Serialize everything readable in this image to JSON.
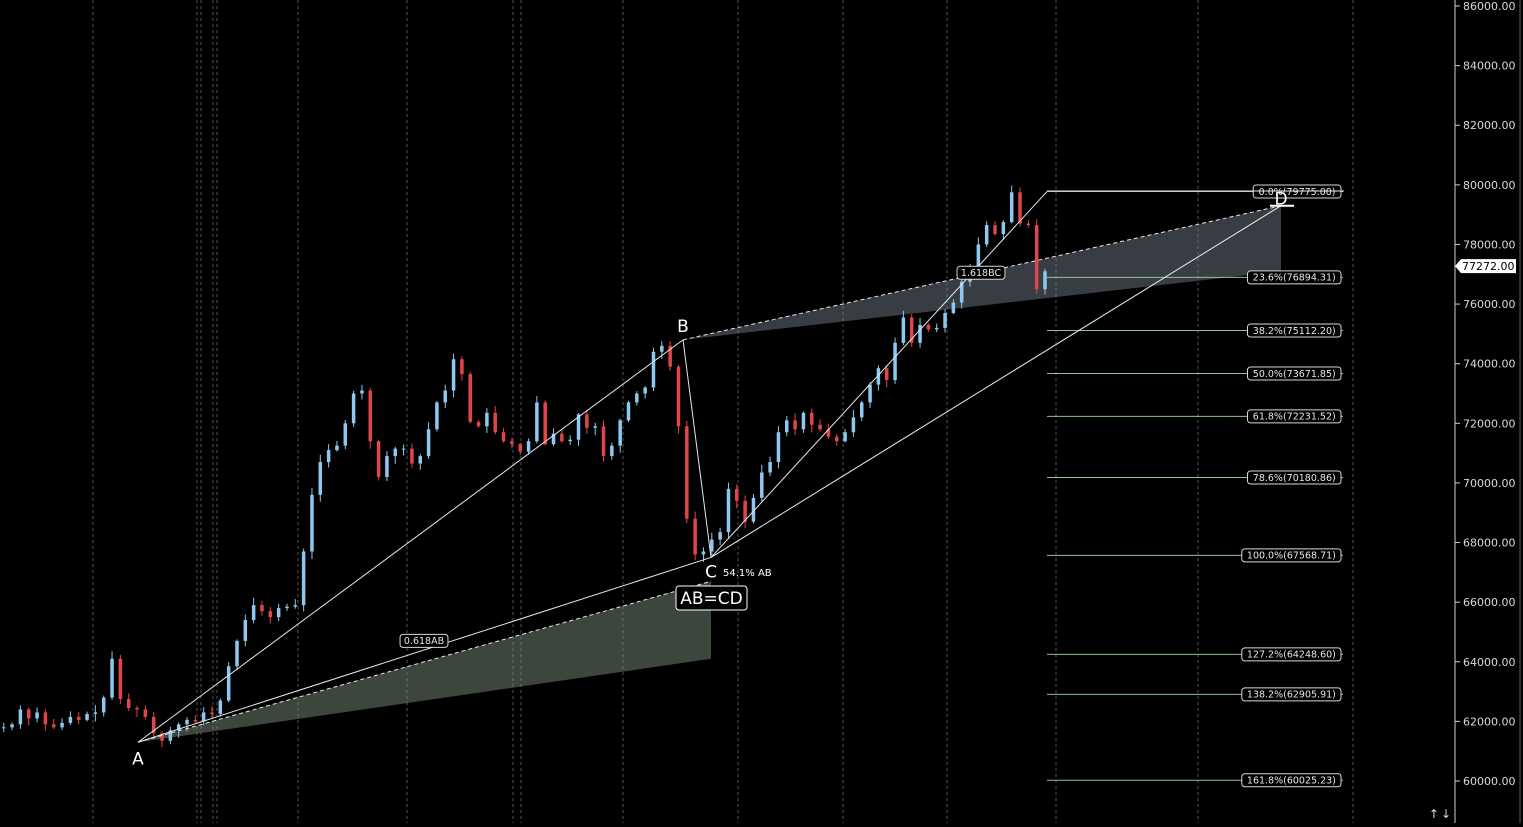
{
  "chart_data": {
    "type": "candlestick",
    "title": "",
    "xlabel": "",
    "ylabel": "",
    "ylim": [
      59000,
      86300
    ],
    "y_ticks": [
      "60000.00",
      "62000.00",
      "64000.00",
      "66000.00",
      "68000.00",
      "70000.00",
      "72000.00",
      "74000.00",
      "76000.00",
      "78000.00",
      "80000.00",
      "82000.00",
      "84000.00",
      "86000.00"
    ],
    "last_price": "77272.00",
    "pattern_points": [
      {
        "label": "A",
        "value": 61300
      },
      {
        "label": "B",
        "value": 74800
      },
      {
        "label": "C",
        "value": 67500
      },
      {
        "label": "D",
        "value": 79300
      }
    ],
    "pattern_labels": {
      "abcd": "AB=CD",
      "retrace_bc": "54.1% AB",
      "ab_ratio": "0.618AB",
      "bc_ratio": "1.618BC"
    },
    "fib_levels": [
      {
        "label": "0.0%(79775.00)",
        "value": 79775.0
      },
      {
        "label": "23.6%(76894.31)",
        "value": 76894.31
      },
      {
        "label": "38.2%(75112.20)",
        "value": 75112.2
      },
      {
        "label": "50.0%(73671.85)",
        "value": 73671.85
      },
      {
        "label": "61.8%(72231.52)",
        "value": 72231.52
      },
      {
        "label": "78.6%(70180.86)",
        "value": 70180.86
      },
      {
        "label": "100.0%(67568.71)",
        "value": 67568.71
      },
      {
        "label": "127.2%(64248.60)",
        "value": 64248.6
      },
      {
        "label": "138.2%(62905.91)",
        "value": 62905.91
      },
      {
        "label": "161.8%(60025.23)",
        "value": 60025.23
      }
    ],
    "colors": {
      "up": "#8ec8f0",
      "down": "#e0454b",
      "fib_line": "#8fc08f",
      "trend_line": "#e8e8e8",
      "background": "#000000",
      "shade_low": "#3f4a3f",
      "shade_high": "#3b4048"
    },
    "grid": "vertical dashed session separators",
    "price_anchors": [
      61800,
      61900,
      62400,
      62100,
      62300,
      61900,
      61800,
      61950,
      62150,
      62050,
      62250,
      62300,
      62800,
      64100,
      62750,
      62450,
      62400,
      62150,
      61600,
      61350,
      61700,
      61900,
      62050,
      62000,
      62300,
      62250,
      62700,
      63850,
      64700,
      65400,
      65900,
      65700,
      65500,
      65800,
      65850,
      65900,
      67700,
      69600,
      70700,
      71100,
      71250,
      72000,
      73000,
      73100,
      71400,
      70200,
      70900,
      71150,
      71150,
      70650,
      70900,
      71800,
      72700,
      73100,
      74150,
      73650,
      72050,
      71900,
      72350,
      71700,
      71400,
      71300,
      71050,
      71400,
      72700,
      71300,
      71650,
      71400,
      71450,
      72300,
      71850,
      71900,
      70900,
      71250,
      72100,
      72700,
      73000,
      73200,
      74400,
      74600,
      73900,
      71900,
      68800,
      67600,
      67700,
      68100,
      68350,
      69800,
      69400,
      68700,
      69500,
      70350,
      70700,
      71700,
      72100,
      71800,
      72350,
      71950,
      71800,
      71550,
      71400,
      71700,
      72200,
      72700,
      73300,
      73850,
      73450,
      74700,
      75550,
      74700,
      75300,
      75150,
      75200,
      75700,
      76050,
      76750,
      77200,
      78000,
      78650,
      78350,
      78750,
      79750,
      78700,
      78650,
      76500,
      77100
    ]
  },
  "chrome": {
    "scroll_arrows": "↑↓"
  }
}
